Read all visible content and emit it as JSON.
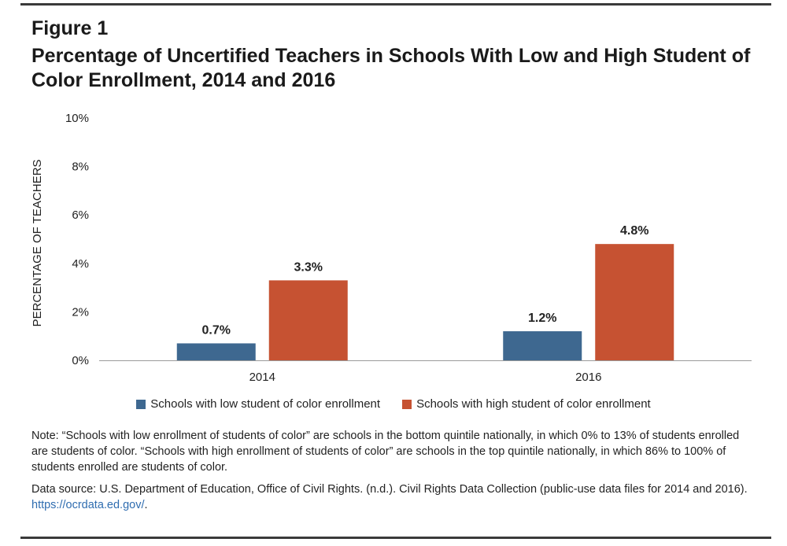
{
  "figure_label": "Figure 1",
  "title": "Percentage of Uncertified Teachers in Schools With Low and High Student of Color Enrollment, 2014 and 2016",
  "colors": {
    "low": "#3e6890",
    "high": "#c65232",
    "rule": "#3a3a3a",
    "link": "#2f6db0"
  },
  "chart_data": {
    "type": "bar",
    "title": "Percentage of Uncertified Teachers in Schools With Low and High Student of Color Enrollment, 2014 and 2016",
    "categories": [
      "2014",
      "2016"
    ],
    "series": [
      {
        "name": "Schools with low student of color enrollment",
        "values": [
          0.7,
          1.2
        ],
        "labels": [
          "0.7%",
          "1.2%"
        ]
      },
      {
        "name": "Schools with high student of color enrollment",
        "values": [
          3.3,
          4.8
        ],
        "labels": [
          "3.3%",
          "4.8%"
        ]
      }
    ],
    "xlabel": "",
    "ylabel": "PERCENTAGE OF TEACHERS",
    "ylim": [
      0,
      10
    ],
    "yticks": [
      0,
      2,
      4,
      6,
      8,
      10
    ],
    "ytick_labels": [
      "0%",
      "2%",
      "4%",
      "6%",
      "8%",
      "10%"
    ],
    "grid": false,
    "legend": "bottom"
  },
  "legend": {
    "low": "Schools with low student of color enrollment",
    "high": "Schools with high student of color enrollment"
  },
  "note": "Note: “Schools with low enrollment of students of color” are schools in the bottom quintile nationally, in which 0% to 13% of students enrolled are students of color. “Schools with high enrollment of students of color” are schools in the top quintile nationally, in which 86% to 100% of students enrolled are students of color.",
  "source": {
    "text": "Data source: U.S. Department of Education, Office of Civil Rights. (n.d.). Civil Rights Data Collection (public-use data files for 2014 and 2016).",
    "link": "https://ocrdata.ed.gov/",
    "end": "."
  }
}
